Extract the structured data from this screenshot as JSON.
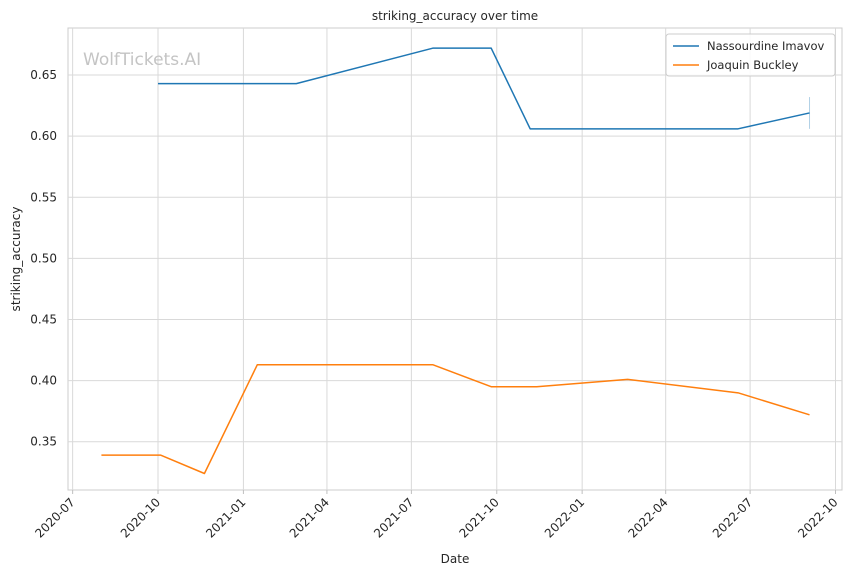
{
  "chart_data": {
    "type": "line",
    "title": "striking_accuracy over time",
    "xlabel": "Date",
    "ylabel": "striking_accuracy",
    "watermark": "WolfTickets.AI",
    "grid": true,
    "legend_position": "top-right",
    "xlim": [
      "2020-06-26",
      "2022-10-08"
    ],
    "ylim": [
      0.3105,
      0.6885
    ],
    "x_ticks": [
      "2020-07",
      "2020-10",
      "2021-01",
      "2021-04",
      "2021-07",
      "2021-10",
      "2022-01",
      "2022-04",
      "2022-07",
      "2022-10"
    ],
    "x_tick_dates": [
      "2020-07-01",
      "2020-10-01",
      "2021-01-01",
      "2021-04-01",
      "2021-07-01",
      "2021-10-01",
      "2022-01-01",
      "2022-04-01",
      "2022-07-01",
      "2022-10-01"
    ],
    "y_ticks": [
      "0.35",
      "0.40",
      "0.45",
      "0.50",
      "0.55",
      "0.60",
      "0.65"
    ],
    "y_tick_values": [
      0.35,
      0.4,
      0.45,
      0.5,
      0.55,
      0.6,
      0.65
    ],
    "series": [
      {
        "name": "Nassourdine Imavov",
        "color": "#1f77b4",
        "x": [
          "2020-10-01",
          "2021-02-27",
          "2021-07-24",
          "2021-09-25",
          "2021-11-06",
          "2022-06-18",
          "2022-09-03"
        ],
        "y": [
          0.643,
          0.643,
          0.672,
          0.672,
          0.606,
          0.606,
          0.619
        ],
        "error_bar": {
          "x": "2022-09-03",
          "low": 0.606,
          "high": 0.632
        }
      },
      {
        "name": "Joaquin Buckley",
        "color": "#ff7f0e",
        "x": [
          "2020-08-01",
          "2020-10-04",
          "2020-11-20",
          "2021-01-16",
          "2021-07-24",
          "2021-09-25",
          "2021-11-13",
          "2022-02-19",
          "2022-06-18",
          "2022-09-03"
        ],
        "y": [
          0.339,
          0.339,
          0.324,
          0.413,
          0.413,
          0.395,
          0.395,
          0.401,
          0.39,
          0.372
        ]
      }
    ]
  }
}
